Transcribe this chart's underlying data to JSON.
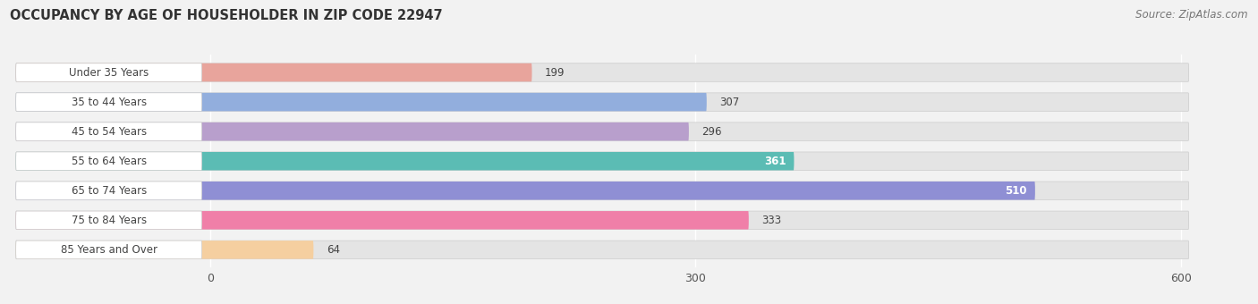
{
  "title": "OCCUPANCY BY AGE OF HOUSEHOLDER IN ZIP CODE 22947",
  "source": "Source: ZipAtlas.com",
  "categories": [
    "Under 35 Years",
    "35 to 44 Years",
    "45 to 54 Years",
    "55 to 64 Years",
    "65 to 74 Years",
    "75 to 84 Years",
    "85 Years and Over"
  ],
  "values": [
    199,
    307,
    296,
    361,
    510,
    333,
    64
  ],
  "bar_colors": [
    "#e8a49c",
    "#92aedd",
    "#b89fcc",
    "#5bbcb4",
    "#8f8fd4",
    "#f07fa8",
    "#f5cfa0"
  ],
  "label_colors": [
    "#555555",
    "#555555",
    "#555555",
    "#ffffff",
    "#ffffff",
    "#555555",
    "#555555"
  ],
  "xmax": 600,
  "xticks": [
    0,
    300,
    600
  ],
  "bar_height": 0.62,
  "background_color": "#f2f2f2",
  "bar_bg_color": "#e4e4e4",
  "title_fontsize": 10.5,
  "source_fontsize": 8.5,
  "label_fontsize": 8.5,
  "value_fontsize": 8.5,
  "tick_fontsize": 9,
  "label_box_color": "#ffffff"
}
